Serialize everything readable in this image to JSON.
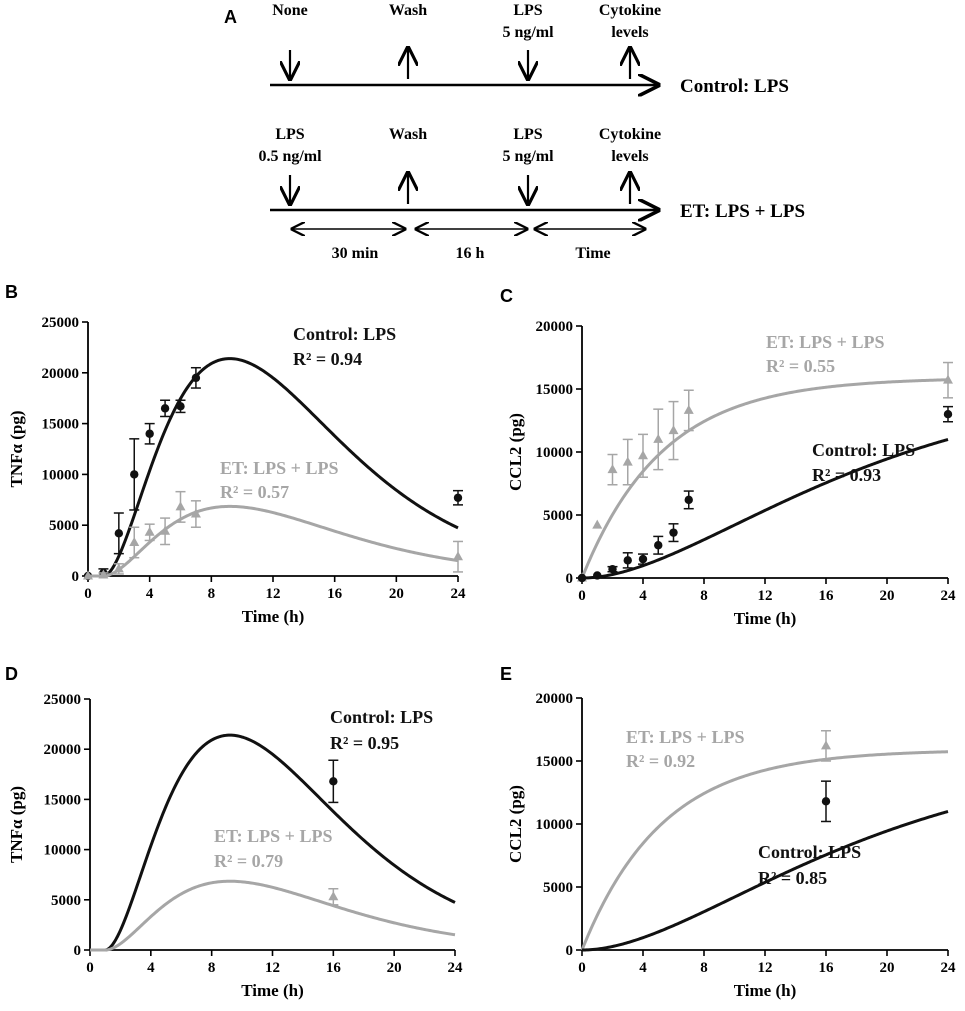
{
  "colors": {
    "control": "#111111",
    "et": "#a6a6a6",
    "axis": "#000000"
  },
  "schematic": {
    "panel_label": "A",
    "control_row": {
      "label": "Control: LPS",
      "events": [
        {
          "text": "None",
          "text2": "",
          "dir": "down"
        },
        {
          "text": "Wash",
          "text2": "",
          "dir": "up"
        },
        {
          "text": "LPS",
          "text2": "5 ng/ml",
          "dir": "down"
        },
        {
          "text": "Cytokine",
          "text2": "levels",
          "dir": "up"
        }
      ]
    },
    "et_row": {
      "label": "ET: LPS + LPS",
      "events": [
        {
          "text": "LPS",
          "text2": "0.5 ng/ml",
          "dir": "down"
        },
        {
          "text": "Wash",
          "text2": "",
          "dir": "up"
        },
        {
          "text": "LPS",
          "text2": "5 ng/ml",
          "dir": "down"
        },
        {
          "text": "Cytokine",
          "text2": "levels",
          "dir": "up"
        }
      ]
    },
    "intervals": [
      "30 min",
      "16 h",
      "Time"
    ]
  },
  "chart_data": [
    {
      "panel": "B",
      "type": "scatter",
      "ylabel": "TNFα (pg)",
      "xlabel": "Time (h)",
      "xlim": [
        0,
        24
      ],
      "ylim": [
        0,
        25000
      ],
      "xticks": [
        0,
        4,
        8,
        12,
        16,
        20,
        24
      ],
      "yticks": [
        0,
        5000,
        10000,
        15000,
        20000,
        25000
      ],
      "xtick_labels": [
        "0",
        "4",
        "8",
        "12",
        "16",
        "20",
        "24"
      ],
      "ytick_labels": [
        "0",
        "5000",
        "10000",
        "15000",
        "20000",
        "25000"
      ],
      "series": [
        {
          "name": "Control: LPS",
          "r2": "R² = 0.94",
          "color": "control",
          "marker": "circle",
          "points": [
            {
              "x": 0,
              "y": 0,
              "err": 0
            },
            {
              "x": 1,
              "y": 300,
              "err": 400
            },
            {
              "x": 2,
              "y": 4200,
              "err": 2000
            },
            {
              "x": 3,
              "y": 10000,
              "err": 3500
            },
            {
              "x": 4,
              "y": 14000,
              "err": 1000
            },
            {
              "x": 5,
              "y": 16500,
              "err": 800
            },
            {
              "x": 6,
              "y": 16700,
              "err": 600
            },
            {
              "x": 7,
              "y": 19500,
              "err": 1000
            },
            {
              "x": 24,
              "y": 7700,
              "err": 700
            }
          ],
          "fit": {
            "model": "gamma",
            "A": 21400,
            "t0": 1,
            "peak": 9.2,
            "k": 1.95
          }
        },
        {
          "name": "ET: LPS + LPS",
          "r2": "R² = 0.57",
          "color": "et",
          "marker": "triangle",
          "points": [
            {
              "x": 0,
              "y": 0,
              "err": 0
            },
            {
              "x": 1,
              "y": 100,
              "err": 200
            },
            {
              "x": 2,
              "y": 700,
              "err": 500
            },
            {
              "x": 3,
              "y": 3300,
              "err": 1500
            },
            {
              "x": 4,
              "y": 4300,
              "err": 800
            },
            {
              "x": 5,
              "y": 4400,
              "err": 1300
            },
            {
              "x": 6,
              "y": 6800,
              "err": 1500
            },
            {
              "x": 7,
              "y": 6100,
              "err": 1300
            },
            {
              "x": 24,
              "y": 1900,
              "err": 1500
            }
          ],
          "fit": {
            "model": "gamma",
            "A": 6850,
            "t0": 1,
            "peak": 9.2,
            "k": 1.95
          }
        }
      ]
    },
    {
      "panel": "C",
      "type": "scatter",
      "ylabel": "CCL2 (pg)",
      "xlabel": "Time (h)",
      "xlim": [
        0,
        24
      ],
      "ylim": [
        0,
        20000
      ],
      "xticks": [
        0,
        4,
        8,
        12,
        16,
        20,
        24
      ],
      "yticks": [
        0,
        5000,
        10000,
        15000,
        20000
      ],
      "xtick_labels": [
        "0",
        "4",
        "8",
        "12",
        "16",
        "20",
        "24"
      ],
      "ytick_labels": [
        "0",
        "5000",
        "10000",
        "15000",
        "20000"
      ],
      "series": [
        {
          "name": "ET: LPS + LPS",
          "r2": "R² = 0.55",
          "color": "et",
          "marker": "triangle",
          "points": [
            {
              "x": 0,
              "y": 0,
              "err": 0
            },
            {
              "x": 1,
              "y": 4200,
              "err": 0
            },
            {
              "x": 2,
              "y": 8600,
              "err": 1200
            },
            {
              "x": 3,
              "y": 9200,
              "err": 1800
            },
            {
              "x": 4,
              "y": 9700,
              "err": 1700
            },
            {
              "x": 5,
              "y": 11000,
              "err": 2400
            },
            {
              "x": 6,
              "y": 11700,
              "err": 2300
            },
            {
              "x": 7,
              "y": 13300,
              "err": 1600
            },
            {
              "x": 24,
              "y": 15700,
              "err": 1400
            }
          ],
          "fit": {
            "model": "exp",
            "A": 15900,
            "t0": 0,
            "k": 0.19,
            "n": 1
          }
        },
        {
          "name": "Control: LPS",
          "r2": "R² = 0.93",
          "color": "control",
          "marker": "circle",
          "points": [
            {
              "x": 0,
              "y": 0,
              "err": 0
            },
            {
              "x": 1,
              "y": 200,
              "err": 0
            },
            {
              "x": 2,
              "y": 700,
              "err": 200
            },
            {
              "x": 3,
              "y": 1400,
              "err": 600
            },
            {
              "x": 4,
              "y": 1500,
              "err": 400
            },
            {
              "x": 5,
              "y": 2600,
              "err": 700
            },
            {
              "x": 6,
              "y": 3600,
              "err": 700
            },
            {
              "x": 7,
              "y": 6200,
              "err": 700
            },
            {
              "x": 24,
              "y": 13000,
              "err": 600
            }
          ],
          "fit": {
            "model": "exp",
            "A": 15900,
            "t0": 0,
            "k": 0.1,
            "n": 2
          }
        }
      ]
    },
    {
      "panel": "D",
      "type": "scatter",
      "ylabel": "TNFα (pg)",
      "xlabel": "Time (h)",
      "xlim": [
        0,
        24
      ],
      "ylim": [
        0,
        25000
      ],
      "xticks": [
        0,
        4,
        8,
        12,
        16,
        20,
        24
      ],
      "yticks": [
        0,
        5000,
        10000,
        15000,
        20000,
        25000
      ],
      "xtick_labels": [
        "0",
        "4",
        "8",
        "12",
        "16",
        "20",
        "24"
      ],
      "ytick_labels": [
        "0",
        "5000",
        "10000",
        "15000",
        "20000",
        "25000"
      ],
      "series": [
        {
          "name": "Control: LPS",
          "r2": "R² = 0.95",
          "color": "control",
          "marker": "circle",
          "points": [
            {
              "x": 16,
              "y": 16800,
              "err": 2100
            }
          ],
          "fit": {
            "model": "gamma",
            "A": 21400,
            "t0": 1,
            "peak": 9.2,
            "k": 1.95
          }
        },
        {
          "name": "ET: LPS + LPS",
          "r2": "R² = 0.79",
          "color": "et",
          "marker": "triangle",
          "points": [
            {
              "x": 16,
              "y": 5300,
              "err": 800
            }
          ],
          "fit": {
            "model": "gamma",
            "A": 6850,
            "t0": 1,
            "peak": 9.2,
            "k": 1.95
          }
        }
      ]
    },
    {
      "panel": "E",
      "type": "scatter",
      "ylabel": "CCL2 (pg)",
      "xlabel": "Time (h)",
      "xlim": [
        0,
        24
      ],
      "ylim": [
        0,
        20000
      ],
      "xticks": [
        0,
        4,
        8,
        12,
        16,
        20,
        24
      ],
      "yticks": [
        0,
        5000,
        10000,
        15000,
        20000
      ],
      "xtick_labels": [
        "0",
        "4",
        "8",
        "12",
        "16",
        "20",
        "24"
      ],
      "ytick_labels": [
        "0",
        "5000",
        "10000",
        "15000",
        "20000"
      ],
      "series": [
        {
          "name": "ET: LPS + LPS",
          "r2": "R² = 0.92",
          "color": "et",
          "marker": "triangle",
          "points": [
            {
              "x": 16,
              "y": 16200,
              "err": 1200
            }
          ],
          "fit": {
            "model": "exp",
            "A": 15900,
            "t0": 0,
            "k": 0.19,
            "n": 1
          }
        },
        {
          "name": "Control: LPS",
          "r2": "R² = 0.85",
          "color": "control",
          "marker": "circle",
          "points": [
            {
              "x": 16,
              "y": 11800,
              "err": 1600
            }
          ],
          "fit": {
            "model": "exp",
            "A": 15900,
            "t0": 0,
            "k": 0.1,
            "n": 2
          }
        }
      ]
    }
  ]
}
